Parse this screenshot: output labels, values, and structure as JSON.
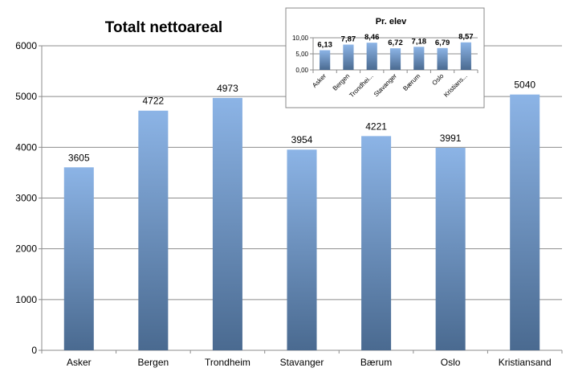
{
  "chart_data": [
    {
      "type": "bar",
      "title": "Totalt nettoareal",
      "categories": [
        "Asker",
        "Bergen",
        "Trondheim",
        "Stavanger",
        "Bærum",
        "Oslo",
        "Kristiansand"
      ],
      "values": [
        3605,
        4722,
        4973,
        3954,
        4221,
        3991,
        5040
      ],
      "data_labels": [
        "3605",
        "4722",
        "4973",
        "3954",
        "4221",
        "3991",
        "5040"
      ],
      "xlabel": "",
      "ylabel": "",
      "ylim": [
        0,
        6000
      ],
      "yticks": [
        0,
        1000,
        2000,
        3000,
        4000,
        5000,
        6000
      ],
      "ytick_labels": [
        "0",
        "1000",
        "2000",
        "3000",
        "4000",
        "5000",
        "6000"
      ],
      "grid": true,
      "legend": "none",
      "bar_color_top": "#8cb4e6",
      "bar_color_bottom": "#4a6a90"
    },
    {
      "type": "bar",
      "title": "Pr. elev",
      "categories": [
        "Asker",
        "Bergen",
        "Trondhei...",
        "Stavanger",
        "Bærum",
        "Oslo",
        "Kristians..."
      ],
      "values": [
        6.13,
        7.87,
        8.46,
        6.72,
        7.18,
        6.79,
        8.57
      ],
      "data_labels": [
        "6,13",
        "7,87",
        "8,46",
        "6,72",
        "7,18",
        "6,79",
        "8,57"
      ],
      "xlabel": "",
      "ylabel": "",
      "ylim": [
        0,
        10
      ],
      "yticks": [
        0,
        5,
        10
      ],
      "ytick_labels": [
        "0,00",
        "5,00",
        "10,00"
      ],
      "grid": true,
      "legend": "none",
      "placement": "top-right inset",
      "bar_color_top": "#8cb4e6",
      "bar_color_bottom": "#4a6a90"
    }
  ]
}
